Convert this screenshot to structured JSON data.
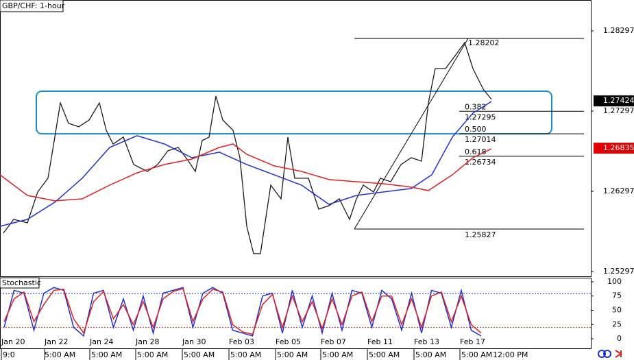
{
  "chart_data": [
    {
      "type": "line",
      "title": "GBP/CHF: 1-hour",
      "xlim": [
        0,
        862
      ],
      "ylim": [
        1.25237,
        1.28682
      ],
      "yticks": [
        1.25297,
        1.26297,
        1.27297,
        1.28297
      ],
      "series": [
        {
          "color": "#1a1a1a",
          "x": [
            5,
            20,
            40,
            55,
            70,
            80,
            88,
            100,
            115,
            130,
            145,
            155,
            165,
            180,
            195,
            215,
            230,
            245,
            260,
            275,
            285,
            295,
            305,
            315,
            325,
            340,
            350,
            360,
            370,
            380,
            395,
            410,
            420,
            430,
            450,
            465,
            480,
            495,
            510,
            520,
            530,
            545,
            555,
            570,
            585,
            600,
            615,
            625,
            635,
            650,
            665,
            678,
            690,
            705,
            717
          ],
          "values": [
            1.25776,
            1.25947,
            1.25904,
            1.26289,
            1.2646,
            1.26973,
            1.274,
            1.27144,
            1.27101,
            1.27186,
            1.274,
            1.27058,
            1.26887,
            1.26973,
            1.26631,
            1.26545,
            1.26631,
            1.26802,
            1.26844,
            1.26673,
            1.26545,
            1.2693,
            1.26973,
            1.27485,
            1.27186,
            1.27058,
            1.26716,
            1.25861,
            1.2552,
            1.2552,
            1.26374,
            1.26203,
            1.26973,
            1.2646,
            1.2646,
            1.26075,
            1.26118,
            1.26203,
            1.25947,
            1.26203,
            1.26374,
            1.26289,
            1.2646,
            1.26417,
            1.26631,
            1.26716,
            1.26673,
            1.274,
            1.27827,
            1.27827,
            1.27998,
            1.28152,
            1.27827,
            1.27571,
            1.27443
          ]
        },
        {
          "color": "#1f2fd0",
          "x": [
            0,
            40,
            80,
            120,
            160,
            200,
            240,
            280,
            320,
            360,
            400,
            440,
            480,
            520,
            560,
            600,
            630,
            660,
            690,
            717
          ],
          "values": [
            1.25861,
            1.25947,
            1.26161,
            1.2646,
            1.26844,
            1.2699,
            1.26887,
            1.26716,
            1.26785,
            1.26631,
            1.26503,
            1.26374,
            1.26135,
            1.26246,
            1.26289,
            1.26332,
            1.26503,
            1.26973,
            1.27272,
            1.27417
          ]
        },
        {
          "color": "#e02020",
          "x": [
            0,
            40,
            80,
            120,
            160,
            200,
            240,
            280,
            320,
            340,
            360,
            400,
            440,
            480,
            520,
            560,
            600,
            625,
            660,
            690,
            717
          ],
          "values": [
            1.26503,
            1.26246,
            1.26178,
            1.26203,
            1.26374,
            1.26528,
            1.26631,
            1.26699,
            1.26844,
            1.26887,
            1.26759,
            1.26614,
            1.26545,
            1.26443,
            1.26417,
            1.26391,
            1.26349,
            1.26306,
            1.26503,
            1.26716,
            1.26827
          ]
        }
      ],
      "zone": [
        1.27014,
        1.27545
      ],
      "fibonacci": [
        {
          "price": 1.28202
        },
        {
          "ratio": 0.382,
          "price": 1.27295
        },
        {
          "ratio": {
            "value": 0.5,
            "label": "0.500"
          },
          "price": 1.27014
        },
        {
          "ratio": 0.618,
          "price": 1.26734
        },
        {
          "price": 1.25827
        }
      ],
      "price_markers": [
        {
          "value": 1.27424,
          "color": "#000000"
        },
        {
          "value": 1.26835,
          "color": "#e00000"
        }
      ]
    },
    {
      "type": "line",
      "title": "Stochastic",
      "xlim": [
        0,
        862
      ],
      "ylim": [
        -10.8,
        107.2
      ],
      "yticks": [
        0,
        25,
        50,
        75,
        100
      ],
      "levels": [
        {
          "value": 80,
          "color": "#1f2fd0"
        },
        {
          "value": 20,
          "color": "#e02020"
        }
      ],
      "x": [
        6,
        20.5,
        35,
        49.5,
        64,
        78.5,
        93,
        107.5,
        122,
        136.5,
        151,
        165.5,
        180,
        194.5,
        209,
        223.5,
        238,
        252.5,
        267,
        281.5,
        296,
        310.5,
        325,
        339.5,
        354,
        368.5,
        383,
        397.5,
        412,
        426.5,
        441,
        455.5,
        470,
        484.5,
        499,
        513.5,
        528,
        542.5,
        557,
        571.5,
        586,
        600.5,
        615,
        629.5,
        644,
        658.5,
        673,
        687.5,
        702
      ],
      "series": [
        {
          "color": "#1f2fd0",
          "values": [
            20,
            85,
            80,
            15,
            80,
            90,
            85,
            20,
            5,
            80,
            85,
            20,
            70,
            15,
            75,
            10,
            80,
            85,
            90,
            20,
            80,
            90,
            80,
            15,
            10,
            5,
            75,
            80,
            10,
            85,
            20,
            75,
            10,
            80,
            15,
            85,
            80,
            20,
            85,
            70,
            15,
            80,
            10,
            85,
            80,
            20,
            85,
            15,
            5
          ]
        },
        {
          "color": "#e02020",
          "values": [
            30,
            70,
            82,
            30,
            60,
            85,
            87,
            35,
            10,
            65,
            83,
            35,
            60,
            25,
            65,
            20,
            70,
            83,
            88,
            30,
            70,
            87,
            82,
            25,
            12,
            8,
            60,
            78,
            20,
            75,
            30,
            65,
            18,
            70,
            25,
            75,
            82,
            30,
            75,
            75,
            25,
            70,
            20,
            75,
            82,
            30,
            75,
            25,
            10
          ]
        }
      ],
      "date_labels": [
        {
          "value": 2,
          "label": "Jan 20"
        },
        {
          "value": 65,
          "label": "Jan 22"
        },
        {
          "value": 131,
          "label": "Jan 24"
        },
        {
          "value": 198,
          "label": "Jan 28"
        },
        {
          "value": 266,
          "label": "Jan 30"
        },
        {
          "value": 334,
          "label": "Feb 03"
        },
        {
          "value": 402,
          "label": "Feb 05"
        },
        {
          "value": 468,
          "label": "Feb 07"
        },
        {
          "value": 536,
          "label": "Feb 11"
        },
        {
          "value": 604,
          "label": "Feb 13"
        },
        {
          "value": 671,
          "label": "Feb 17"
        }
      ],
      "time_labels": [
        {
          "value": 2,
          "label": "9:0"
        },
        {
          "value": 63,
          "label": "5:00 AM"
        },
        {
          "value": 131,
          "label": "5:00 AM"
        },
        {
          "value": 198,
          "label": "5:00 AM"
        },
        {
          "value": 266,
          "label": "5:00 AM"
        },
        {
          "value": 334,
          "label": "5:00 AM"
        },
        {
          "value": 402,
          "label": "5:00 AM"
        },
        {
          "value": 468,
          "label": "5:00 AM"
        },
        {
          "value": 536,
          "label": "5:00 AM"
        },
        {
          "value": 604,
          "label": "5:00 AM"
        },
        {
          "value": 671,
          "label": "5:00 AM"
        },
        {
          "value": 717,
          "label": "12:00 PM"
        }
      ]
    }
  ]
}
